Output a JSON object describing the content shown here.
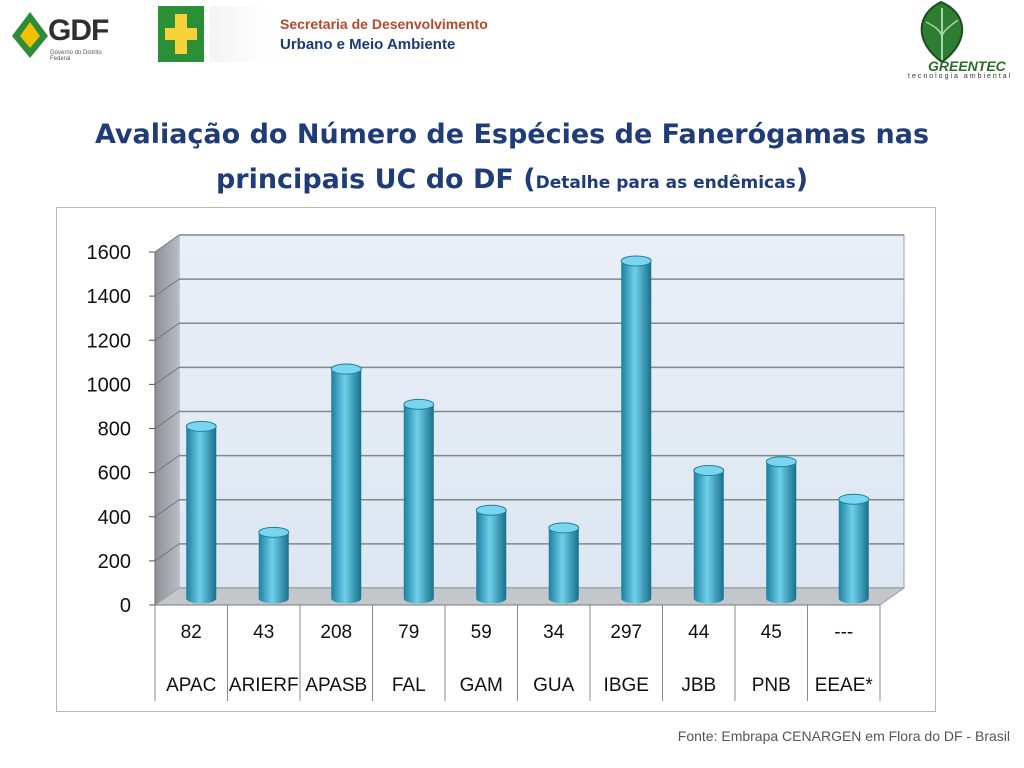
{
  "header": {
    "gdf_logo_text": "GDF",
    "gdf_subtitle": "Governo do Distrito Federal",
    "secretaria_line1": "Secretaria de  Desenvolvimento",
    "secretaria_line2": "Urbano e Meio Ambiente",
    "greentec_name": "GREENTEC",
    "greentec_tagline": "tecnologia ambiental"
  },
  "slide": {
    "title_main": "Avaliação do Número de Espécies de Fanerógamas nas principais UC do DF (",
    "title_small": "Detalhe para as endêmicas",
    "title_close": ")",
    "source": "Fonte: Embrapa CENARGEN  em Flora do DF - Brasil"
  },
  "colors": {
    "bar": "#3aa8c8",
    "title": "#1f3c78",
    "plot_back": "#e6edf6"
  },
  "chart_data": {
    "type": "bar",
    "title": "",
    "xlabel": "",
    "ylabel": "",
    "ylim": [
      0,
      1600
    ],
    "yticks": [
      "0",
      "200",
      "400",
      "600",
      "800",
      "1000",
      "1200",
      "1400",
      "1600"
    ],
    "grid": true,
    "categories": [
      "APAC",
      "ARIERF",
      "APASB",
      "FAL",
      "GAM",
      "GUA",
      "IBGE",
      "JBB",
      "PNB",
      "EEAE*"
    ],
    "table_row": [
      "82",
      "43",
      "208",
      "79",
      "59",
      "34",
      "297",
      "44",
      "45",
      "---"
    ],
    "values": [
      780,
      300,
      1040,
      880,
      400,
      320,
      1530,
      580,
      620,
      450
    ]
  }
}
